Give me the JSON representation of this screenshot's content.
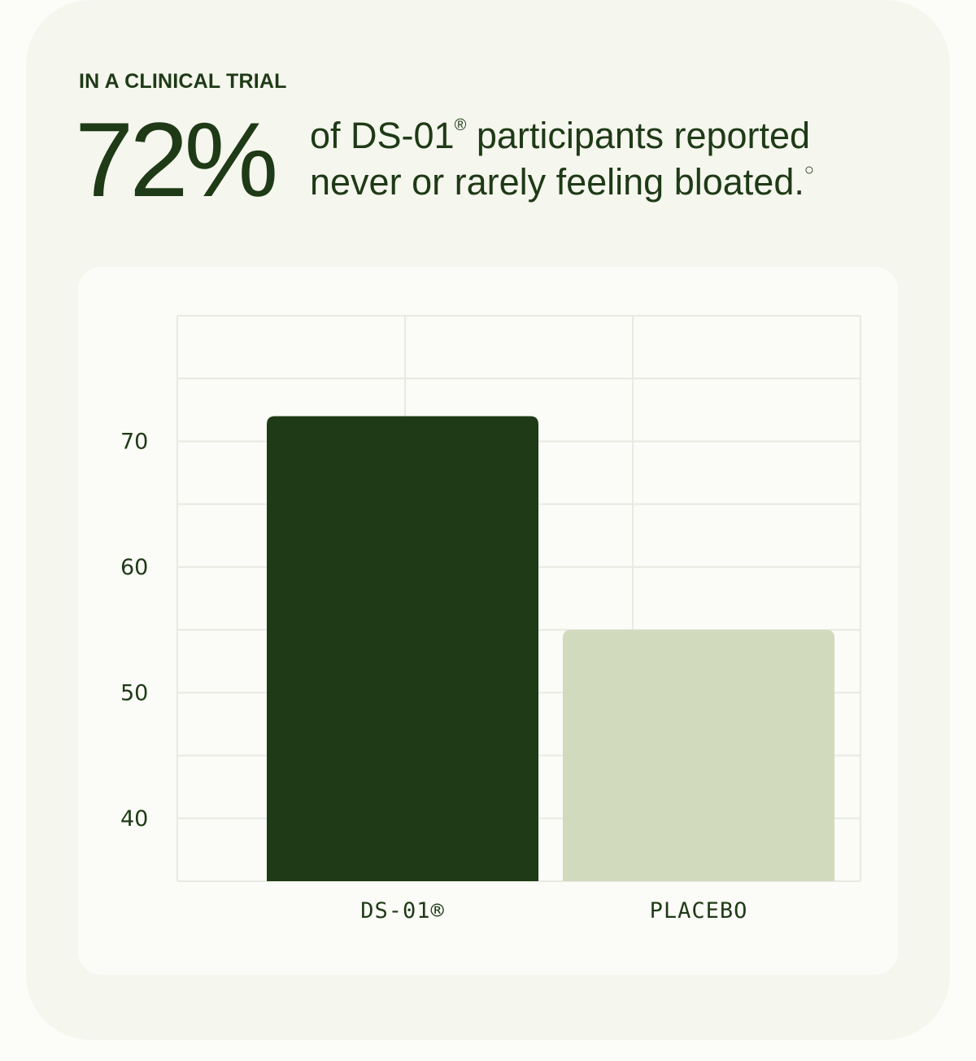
{
  "header": {
    "eyebrow": "IN A CLINICAL TRIAL",
    "stat": "72%",
    "headline_part1": "of DS-01",
    "headline_mark": "®",
    "headline_part2": " participants reported",
    "headline_line2": "never or rarely feeling bloated.",
    "footnote_mark": "○"
  },
  "colors": {
    "primary": "#1e3a16",
    "secondary": "#d1dabc",
    "grid": "#e8eae2",
    "card_bg": "#f5f6ee",
    "panel_bg": "#fbfbf7"
  },
  "chart_data": {
    "type": "bar",
    "categories": [
      "DS-01®",
      "PLACEBO"
    ],
    "values": [
      72,
      55
    ],
    "ylim": [
      35,
      80
    ],
    "yticks": [
      40,
      50,
      60,
      70
    ],
    "ytick_labels": [
      "40",
      "50",
      "60",
      "70"
    ],
    "grid": true,
    "title": "",
    "xlabel": "",
    "ylabel": ""
  }
}
